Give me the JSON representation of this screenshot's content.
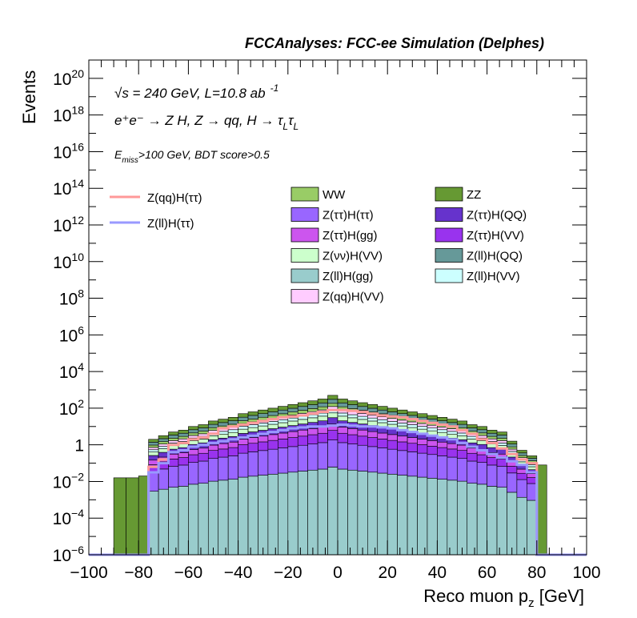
{
  "chart_data": {
    "type": "area",
    "header": "FCCAnalyses: FCC-ee Simulation (Delphes)",
    "xlabel": "Reco muon p",
    "xlabel_sub": "z",
    "xlabel_unit": " [GeV]",
    "ylabel": "Events",
    "xlim": [
      -100,
      100
    ],
    "ylim_log10": [
      -6,
      21
    ],
    "log_y": true,
    "x_ticks": [
      -100,
      -80,
      -60,
      -40,
      -20,
      0,
      20,
      40,
      60,
      80,
      100
    ],
    "x_tick_labels": [
      "−100",
      "−80",
      "−60",
      "−40",
      "−20",
      "0",
      "20",
      "40",
      "60",
      "80",
      "100"
    ],
    "y_ticks": [
      {
        "exp": -6,
        "base": "10",
        "sup": "−6"
      },
      {
        "exp": -4,
        "base": "10",
        "sup": "−4"
      },
      {
        "exp": -2,
        "base": "10",
        "sup": "−2"
      },
      {
        "exp": 0,
        "base": "1",
        "sup": ""
      },
      {
        "exp": 2,
        "base": "10",
        "sup": "2"
      },
      {
        "exp": 4,
        "base": "10",
        "sup": "4"
      },
      {
        "exp": 6,
        "base": "10",
        "sup": "6"
      },
      {
        "exp": 8,
        "base": "10",
        "sup": "8"
      },
      {
        "exp": 10,
        "base": "10",
        "sup": "10"
      },
      {
        "exp": 12,
        "base": "10",
        "sup": "12"
      },
      {
        "exp": 14,
        "base": "10",
        "sup": "14"
      },
      {
        "exp": 16,
        "base": "10",
        "sup": "16"
      },
      {
        "exp": 18,
        "base": "10",
        "sup": "18"
      },
      {
        "exp": 20,
        "base": "10",
        "sup": "20"
      }
    ],
    "annotations": {
      "line1": "√s = 240 GeV, L=10.8 ab",
      "line1_sup": "-1",
      "line2": "e⁺e⁻ → Z H, Z  → qq, H  →  τ",
      "line2_sub1": "L",
      "line2_tau2": "τ",
      "line2_sub2": "L",
      "line3_main": "E",
      "line3_sub": "miss",
      "line3_rest": ">100 GeV, BDT score>0.5"
    },
    "stack_series": [
      {
        "name": "Z(ll)H(gg)",
        "color": "#99cccc"
      },
      {
        "name": "Z(ττ)H(ττ)",
        "color": "#9966ff"
      },
      {
        "name": "Z(ττ)H(VV)",
        "color": "#9933ee"
      },
      {
        "name": "Z(ττ)H(gg)",
        "color": "#cc55ee"
      },
      {
        "name": "Z(ττ)H(QQ)",
        "color": "#6633cc"
      },
      {
        "name": "Z(νν)H(VV)",
        "color": "#ccffcc"
      },
      {
        "name": "Z(ll)H(VV)",
        "color": "#ccffff"
      },
      {
        "name": "Z(qq)H(VV)",
        "color": "#ffccff"
      },
      {
        "name": "WW",
        "color": "#99cc66"
      },
      {
        "name": "Z(ll)H(QQ)",
        "color": "#669999"
      },
      {
        "name": "ZZ",
        "color": "#669933"
      }
    ],
    "bin_edges_x": [
      -100,
      -95,
      -90,
      -85,
      -80,
      -76,
      -72,
      -68,
      -64,
      -60,
      -56,
      -52,
      -48,
      -44,
      -40,
      -36,
      -32,
      -28,
      -24,
      -20,
      -16,
      -12,
      -8,
      -4,
      0,
      4,
      8,
      12,
      16,
      20,
      24,
      28,
      32,
      36,
      40,
      44,
      48,
      52,
      56,
      60,
      64,
      68,
      72,
      76,
      80,
      84,
      88,
      92,
      96,
      100
    ],
    "stack_top_log10": [
      -6,
      -6,
      -1.8,
      -1.8,
      -1.7,
      0.3,
      0.5,
      0.7,
      0.8,
      1,
      1.1,
      1.3,
      1.4,
      1.5,
      1.7,
      1.8,
      1.9,
      2.0,
      2.1,
      2.2,
      2.3,
      2.4,
      2.5,
      2.7,
      2.5,
      2.4,
      2.3,
      2.2,
      2.1,
      2.0,
      1.9,
      1.8,
      1.7,
      1.6,
      1.5,
      1.4,
      1.3,
      1.1,
      1.0,
      0.8,
      0.7,
      0.2,
      -0.3,
      -0.6,
      -1.1,
      -6,
      -6,
      -6,
      -6
    ],
    "line_series": [
      {
        "name": "Z(qq)H(ττ)",
        "color": "#ff9999",
        "y_log10": [
          -6,
          -6,
          -6,
          -6,
          -6,
          -1.2,
          -0.8,
          0.0,
          0.1,
          0.3,
          0.4,
          0.6,
          0.9,
          1.0,
          1.1,
          1.2,
          1.3,
          1.4,
          1.5,
          1.55,
          1.6,
          1.7,
          1.8,
          1.9,
          1.9,
          1.85,
          1.8,
          1.7,
          1.6,
          1.55,
          1.5,
          1.4,
          1.3,
          1.2,
          1.1,
          1.0,
          0.8,
          0.6,
          0.3,
          0.1,
          -0.2,
          -0.5,
          -0.8,
          -1.0,
          -6,
          -6,
          -6,
          -6,
          -6
        ]
      },
      {
        "name": "Z(ll)H(ττ)",
        "color": "#9999ff",
        "y_log10": [
          -6,
          -6,
          -6,
          -6,
          -6,
          -1.5,
          -1.0,
          -0.4,
          -0.3,
          -0.1,
          0.0,
          0.1,
          0.2,
          0.3,
          0.4,
          0.5,
          0.6,
          0.7,
          0.8,
          0.9,
          0.95,
          1.0,
          1.0,
          1.05,
          1.1,
          1.05,
          1.0,
          1.0,
          0.95,
          0.9,
          0.8,
          0.7,
          0.6,
          0.5,
          0.4,
          0.3,
          0.1,
          -0.1,
          -0.3,
          -0.5,
          -0.7,
          -0.9,
          -1.1,
          -1.5,
          -6,
          -6,
          -6,
          -6,
          -6
        ]
      }
    ]
  }
}
